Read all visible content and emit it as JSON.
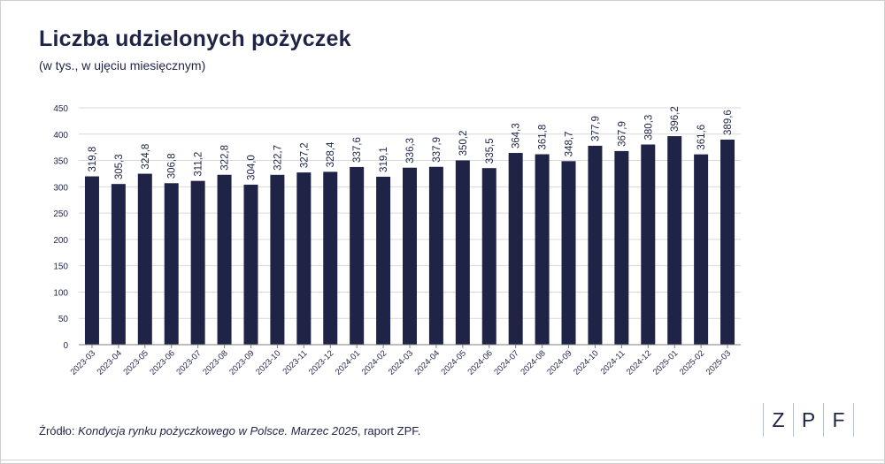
{
  "title": "Liczba udzielonych pożyczek",
  "subtitle": "(w tys., w ujęciu miesięcznym)",
  "source": {
    "prefix": "Źródło: ",
    "italic": "Kondycja rynku pożyczkowego w Polsce. Marzec 2025",
    "suffix": ", raport ZPF."
  },
  "logo": {
    "letters": [
      "Z",
      "P",
      "F"
    ]
  },
  "colors": {
    "bar": "#1f2447",
    "text": "#1f2447",
    "grid": "#d9d9d9",
    "axis": "#7f7f7f"
  },
  "chart_data": {
    "type": "bar",
    "title": "Liczba udzielonych pożyczek",
    "subtitle": "(w tys., w ujęciu miesięcznym)",
    "categories": [
      "2023-03",
      "2023-04",
      "2023-05",
      "2023-06",
      "2023-07",
      "2023-08",
      "2023-09",
      "2023-10",
      "2023-11",
      "2023-12",
      "2024-01",
      "2024-02",
      "2024-03",
      "2024-04",
      "2024-05",
      "2024-06",
      "2024-07",
      "2024-08",
      "2024-09",
      "2024-10",
      "2024-11",
      "2024-12",
      "2025-01",
      "2025-02",
      "2025-03"
    ],
    "values": [
      319.8,
      305.3,
      324.8,
      306.8,
      311.2,
      322.8,
      304.0,
      322.7,
      327.2,
      328.4,
      337.6,
      319.1,
      336.3,
      337.9,
      350.2,
      335.5,
      364.3,
      361.8,
      348.7,
      377.9,
      367.9,
      380.3,
      396.2,
      361.6,
      389.6
    ],
    "value_labels": [
      "319,8",
      "305,3",
      "324,8",
      "306,8",
      "311,2",
      "322,8",
      "304,0",
      "322,7",
      "327,2",
      "328,4",
      "337,6",
      "319,1",
      "336,3",
      "337,9",
      "350,2",
      "335,5",
      "364,3",
      "361,8",
      "348,7",
      "377,9",
      "367,9",
      "380,3",
      "396,2",
      "361,6",
      "389,6"
    ],
    "xlabel": "",
    "ylabel": "",
    "ylim": [
      0,
      450
    ],
    "yticks": [
      0,
      50,
      100,
      150,
      200,
      250,
      300,
      350,
      400,
      450
    ],
    "grid": true,
    "legend": "none"
  }
}
